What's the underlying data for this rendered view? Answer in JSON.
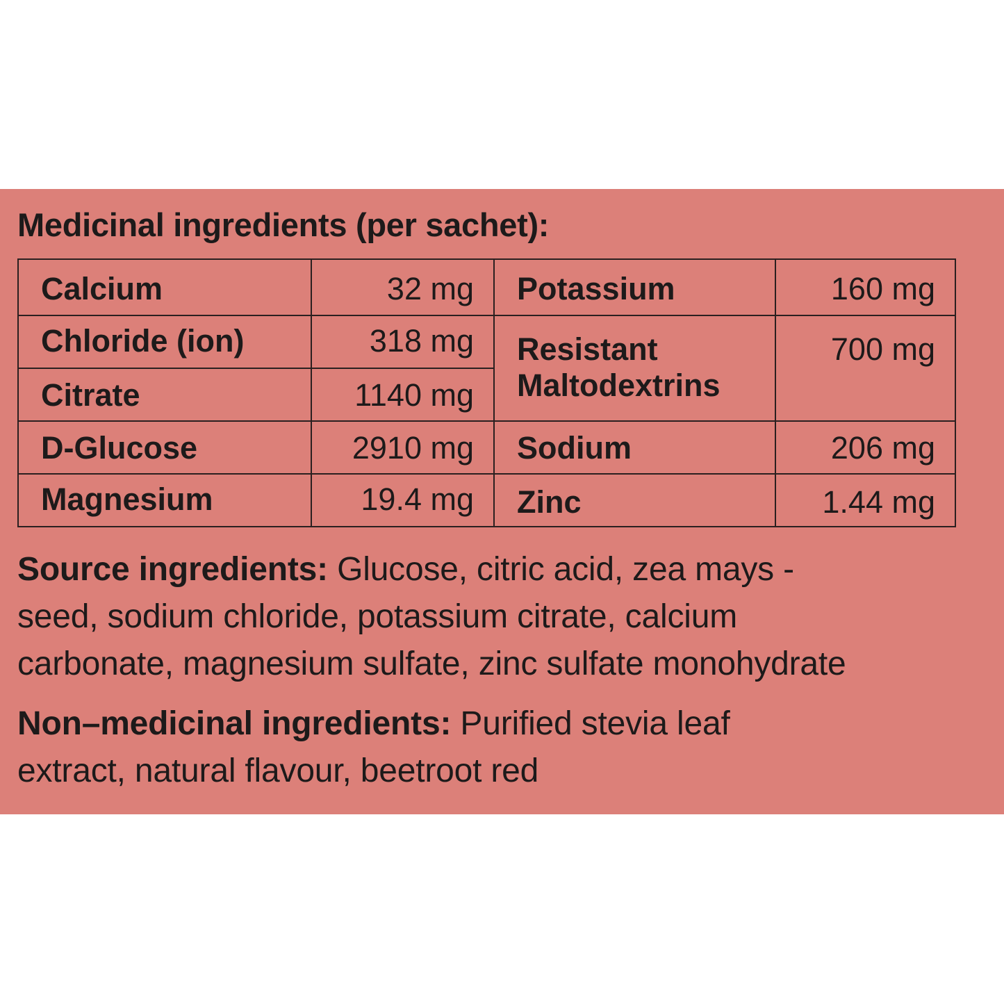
{
  "background_color": "#dc8079",
  "text_color": "#1d1a1a",
  "heading": "Medicinal ingredients (per sachet):",
  "table": {
    "left": [
      {
        "name": "Calcium",
        "amount": "32 mg"
      },
      {
        "name": "Chloride (ion)",
        "amount": "318 mg"
      },
      {
        "name": "Citrate",
        "amount": "1140 mg"
      },
      {
        "name": "D-Glucose",
        "amount": "2910 mg"
      },
      {
        "name": "Magnesium",
        "amount": "19.4 mg"
      }
    ],
    "right": [
      {
        "name": "Potassium",
        "amount": "160 mg"
      },
      {
        "name": "Resistant Maltodextrins",
        "name_lines": [
          "Resistant",
          "Maltodextrins"
        ],
        "amount": "700 mg"
      },
      {
        "name": "Sodium",
        "amount": "206 mg"
      },
      {
        "name": "Zinc",
        "amount": "1.44 mg"
      }
    ]
  },
  "source": {
    "label": "Source ingredients:",
    "lines": [
      " Glucose, citric acid, zea mays -",
      "seed, sodium chloride, potassium citrate, calcium",
      "carbonate, magnesium sulfate, zinc sulfate monohydrate"
    ]
  },
  "non_medicinal": {
    "label": "Non–medicinal ingredients:",
    "lines": [
      " Purified stevia leaf",
      "extract, natural flavour, beetroot red"
    ]
  }
}
